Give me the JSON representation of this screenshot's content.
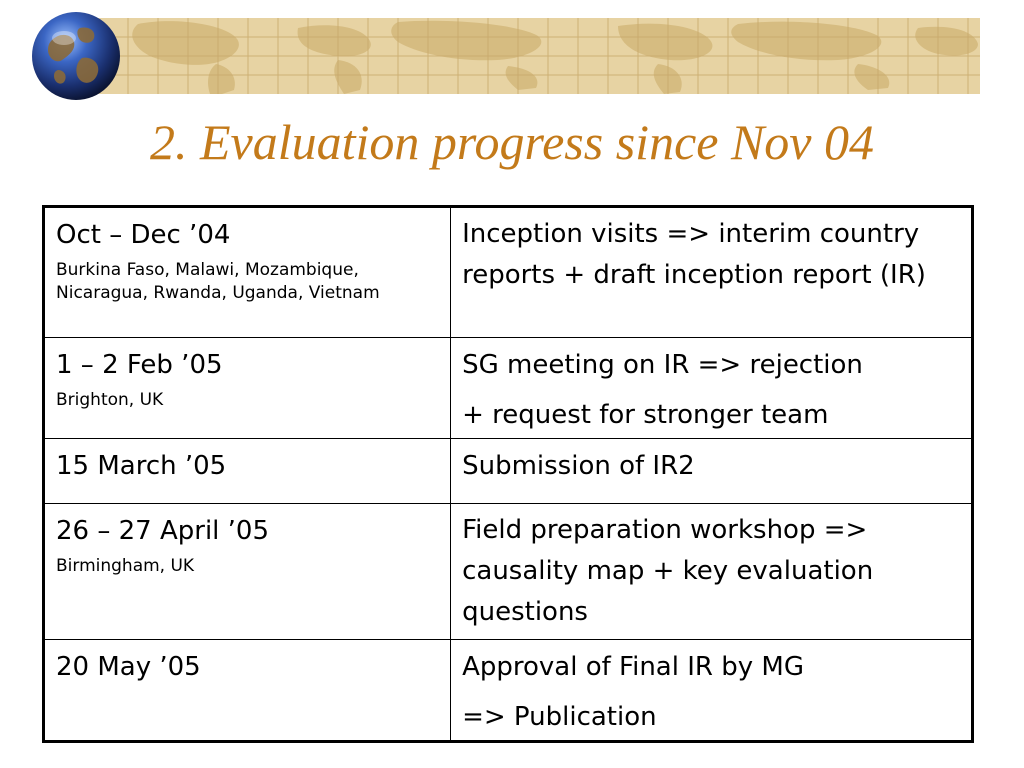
{
  "slide": {
    "title": "2. Evaluation progress since Nov 04"
  },
  "decoration": {
    "banner_icon": "world-map-icon",
    "logo_icon": "globe-icon",
    "colors": {
      "banner": "#e7d3a3",
      "map_land": "#d4b97c",
      "grid_lines": "#c8a86a",
      "title": "#c37a1a",
      "globe_blue": "#2a4f9e",
      "table_border": "#000000"
    }
  },
  "table": {
    "rows": [
      {
        "date": "Oct – Dec ’04",
        "location": "Burkina Faso, Malawi, Mozambique, Nicaragua, Rwanda, Uganda, Vietnam",
        "description": [
          "Inception visits => interim country reports + draft inception report (IR)"
        ]
      },
      {
        "date": "1 – 2 Feb ’05",
        "location": "Brighton, UK",
        "description": [
          "SG meeting on IR => rejection",
          "+ request for stronger team"
        ]
      },
      {
        "date": "15 March ’05",
        "location": "",
        "description": [
          "Submission of IR2"
        ]
      },
      {
        "date": "26 – 27 April ’05",
        "location": "Birmingham, UK",
        "description": [
          "Field preparation workshop => causality map + key evaluation questions"
        ]
      },
      {
        "date": "20 May ’05",
        "location": "",
        "description": [
          "Approval of Final IR by MG",
          "=> Publication"
        ]
      }
    ]
  }
}
